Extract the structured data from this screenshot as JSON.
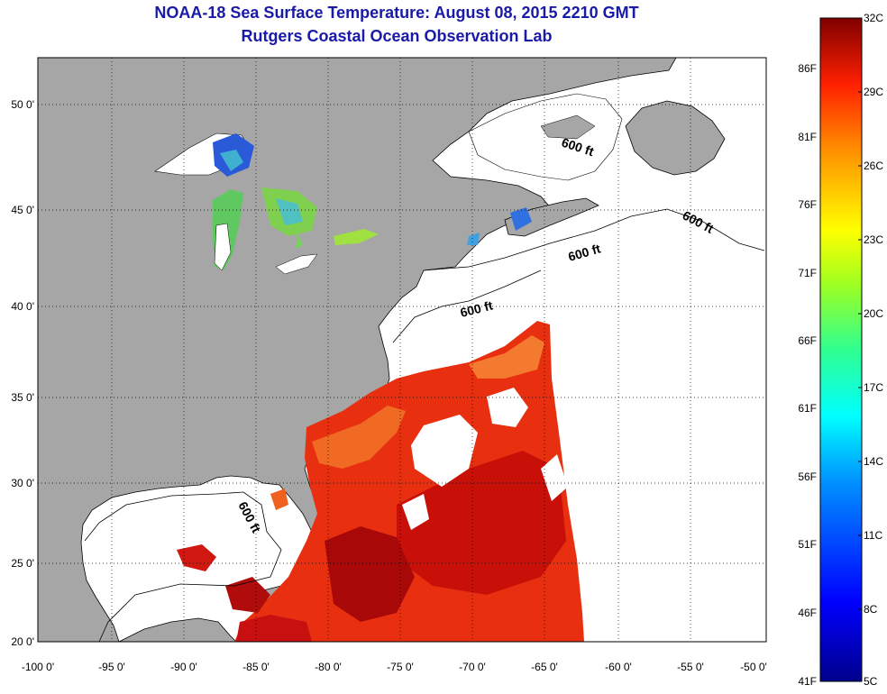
{
  "title": {
    "line1": "NOAA-18 Sea Surface Temperature:  August 08, 2015 2210 GMT",
    "line2": "Rutgers Coastal Ocean Observation Lab"
  },
  "axes": {
    "lat_labels": [
      "50 0'",
      "45 0'",
      "40 0'",
      "35 0'",
      "30 0'",
      "25 0'",
      "20 0'"
    ],
    "lon_labels": [
      "-100 0'",
      "-95 0'",
      "-90 0'",
      "-85 0'",
      "-80 0'",
      "-75 0'",
      "-70 0'",
      "-65 0'",
      "-60 0'",
      "-55 0'",
      "-50 0'"
    ]
  },
  "contour_labels": [
    "600 ft",
    "600 ft",
    "600 ft",
    "600 ft",
    "600 ft"
  ],
  "colorbar": {
    "celsius": [
      "32C",
      "29C",
      "26C",
      "23C",
      "20C",
      "17C",
      "14C",
      "11C",
      "8C",
      "5C"
    ],
    "fahrenheit": [
      "86F",
      "81F",
      "76F",
      "71F",
      "66F",
      "61F",
      "56F",
      "51F",
      "46F",
      "41F"
    ]
  },
  "colors": {
    "land": "#a6a6a6",
    "ocean": "#ffffff",
    "title": "#1a1aa8",
    "sst_warm": "#d81410",
    "sst_hot": "#a80808",
    "sst_orange": "#f06020"
  }
}
